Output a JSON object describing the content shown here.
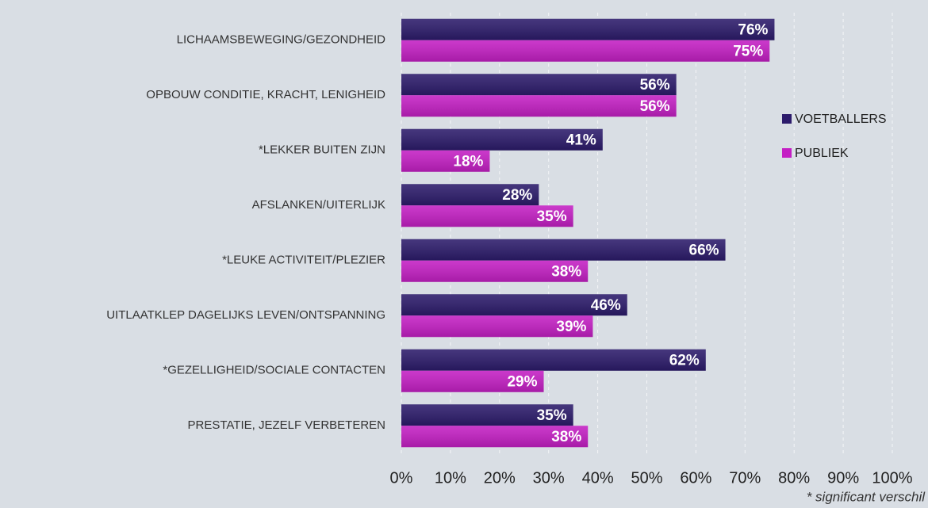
{
  "chart_data": {
    "type": "barh",
    "categories": [
      "LICHAAMSBEWEGING/GEZONDHEID",
      "OPBOUW CONDITIE, KRACHT, LENIGHEID",
      "*LEKKER BUITEN ZIJN",
      "AFSLANKEN/UITERLIJK",
      "*LEUKE ACTIVITEIT/PLEZIER",
      "UITLAATKLEP DAGELIJKS LEVEN/ONTSPANNING",
      "*GEZELLIGHEID/SOCIALE CONTACTEN",
      "PRESTATIE, JEZELF VERBETEREN"
    ],
    "series": [
      {
        "name": "VOETBALLERS",
        "color": "#2c1b6b",
        "values": [
          76,
          56,
          41,
          28,
          66,
          46,
          62,
          35
        ],
        "value_labels": [
          "76%",
          "56%",
          "41%",
          "28%",
          "66%",
          "46%",
          "62%",
          "35%"
        ]
      },
      {
        "name": "PUBLIEK",
        "color": "#c41fc4",
        "values": [
          75,
          56,
          18,
          35,
          38,
          39,
          29,
          38
        ],
        "value_labels": [
          "75%",
          "56%",
          "18%",
          "35%",
          "38%",
          "39%",
          "29%",
          "38%"
        ]
      }
    ],
    "xlim": [
      0,
      100
    ],
    "xticks": [
      {
        "value": 0,
        "label": "0%"
      },
      {
        "value": 10,
        "label": "10%"
      },
      {
        "value": 20,
        "label": "20%"
      },
      {
        "value": 30,
        "label": "30%"
      },
      {
        "value": 40,
        "label": "40%"
      },
      {
        "value": 50,
        "label": "50%"
      },
      {
        "value": 60,
        "label": "60%"
      },
      {
        "value": 70,
        "label": "70%"
      },
      {
        "value": 80,
        "label": "80%"
      },
      {
        "value": 90,
        "label": "90%"
      },
      {
        "value": 100,
        "label": "100%"
      }
    ],
    "grid": true,
    "legend": "right",
    "footnote": "* significant verschil"
  }
}
